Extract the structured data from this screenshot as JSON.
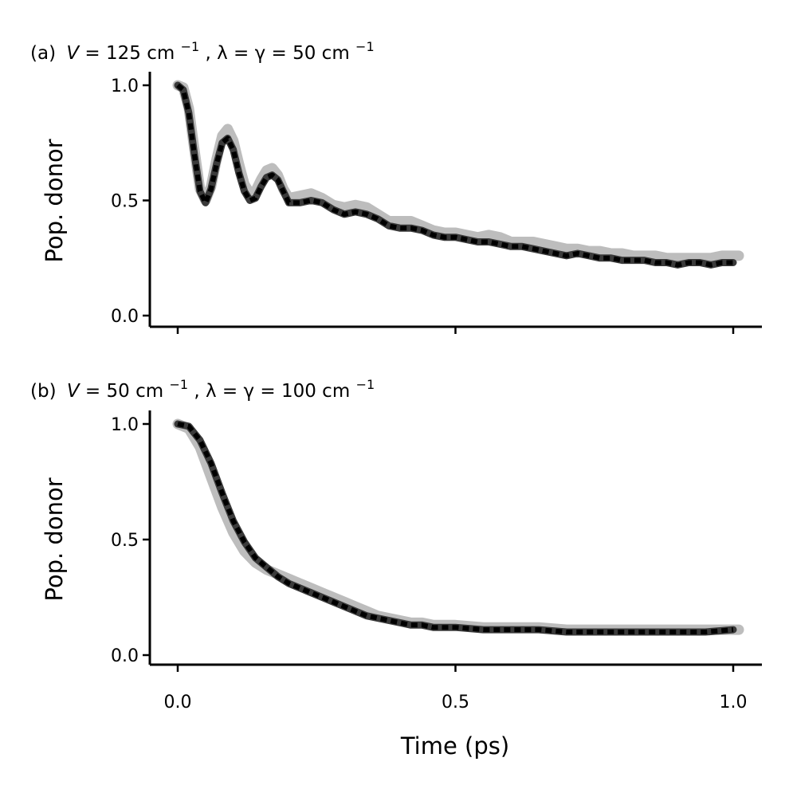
{
  "chart_data": [
    {
      "type": "line",
      "title": "(a) V = 125 cm⁻¹,  λ = γ = 50 cm⁻¹",
      "title_parts": {
        "prefix": "(a)",
        "V": "V",
        "eq1": " = 125 cm",
        "sup1": "−1",
        "mid": ",  λ = γ = 50 cm",
        "sup2": "−1"
      },
      "xlabel": "",
      "ylabel": "Pop. donor",
      "xlim": [
        -0.05,
        1.05
      ],
      "ylim": [
        -0.05,
        1.05
      ],
      "xticks": [
        0.0,
        0.5,
        1.0
      ],
      "xtick_labels_shown": false,
      "yticks": [
        0.0,
        0.5,
        1.0
      ],
      "ytick_labels": [
        "0.0",
        "0.5",
        "1.0"
      ],
      "series": [
        {
          "name": "reference (gray)",
          "color": "#bdbdbd",
          "x": [
            0,
            0.01,
            0.02,
            0.03,
            0.04,
            0.05,
            0.06,
            0.07,
            0.08,
            0.09,
            0.1,
            0.11,
            0.12,
            0.13,
            0.14,
            0.15,
            0.16,
            0.17,
            0.18,
            0.19,
            0.2,
            0.22,
            0.24,
            0.26,
            0.28,
            0.3,
            0.32,
            0.34,
            0.36,
            0.38,
            0.4,
            0.42,
            0.44,
            0.46,
            0.48,
            0.5,
            0.52,
            0.54,
            0.56,
            0.58,
            0.6,
            0.62,
            0.64,
            0.66,
            0.68,
            0.7,
            0.72,
            0.74,
            0.76,
            0.78,
            0.8,
            0.82,
            0.84,
            0.86,
            0.88,
            0.9,
            0.92,
            0.94,
            0.96,
            0.98,
            1.0,
            1.01
          ],
          "y": [
            1.0,
            0.99,
            0.9,
            0.72,
            0.55,
            0.5,
            0.56,
            0.68,
            0.78,
            0.81,
            0.76,
            0.66,
            0.57,
            0.53,
            0.54,
            0.59,
            0.63,
            0.64,
            0.61,
            0.55,
            0.51,
            0.52,
            0.53,
            0.51,
            0.48,
            0.47,
            0.48,
            0.47,
            0.44,
            0.41,
            0.41,
            0.41,
            0.39,
            0.37,
            0.36,
            0.36,
            0.35,
            0.34,
            0.35,
            0.34,
            0.32,
            0.32,
            0.32,
            0.31,
            0.3,
            0.29,
            0.29,
            0.28,
            0.28,
            0.27,
            0.27,
            0.26,
            0.26,
            0.26,
            0.25,
            0.25,
            0.25,
            0.25,
            0.25,
            0.26,
            0.26,
            0.26
          ]
        },
        {
          "name": "result (black)",
          "color": "#111111",
          "x": [
            0,
            0.01,
            0.02,
            0.03,
            0.04,
            0.05,
            0.06,
            0.07,
            0.08,
            0.09,
            0.1,
            0.11,
            0.12,
            0.13,
            0.14,
            0.15,
            0.16,
            0.17,
            0.18,
            0.19,
            0.2,
            0.22,
            0.24,
            0.26,
            0.28,
            0.3,
            0.32,
            0.34,
            0.36,
            0.38,
            0.4,
            0.42,
            0.44,
            0.46,
            0.48,
            0.5,
            0.52,
            0.54,
            0.56,
            0.58,
            0.6,
            0.62,
            0.64,
            0.66,
            0.68,
            0.7,
            0.72,
            0.74,
            0.76,
            0.78,
            0.8,
            0.82,
            0.84,
            0.86,
            0.88,
            0.9,
            0.92,
            0.94,
            0.96,
            0.98,
            1.0
          ],
          "y": [
            1.0,
            0.98,
            0.88,
            0.7,
            0.54,
            0.49,
            0.55,
            0.66,
            0.75,
            0.77,
            0.72,
            0.62,
            0.54,
            0.5,
            0.51,
            0.56,
            0.6,
            0.61,
            0.59,
            0.54,
            0.49,
            0.49,
            0.5,
            0.49,
            0.46,
            0.44,
            0.45,
            0.44,
            0.42,
            0.39,
            0.38,
            0.38,
            0.37,
            0.35,
            0.34,
            0.34,
            0.33,
            0.32,
            0.32,
            0.31,
            0.3,
            0.3,
            0.29,
            0.28,
            0.27,
            0.26,
            0.27,
            0.26,
            0.25,
            0.25,
            0.24,
            0.24,
            0.24,
            0.23,
            0.23,
            0.22,
            0.23,
            0.23,
            0.22,
            0.23,
            0.23
          ]
        }
      ]
    },
    {
      "type": "line",
      "title": "(b) V = 50 cm⁻¹,  λ = γ = 100 cm⁻¹",
      "title_parts": {
        "prefix": "(b)",
        "V": "V",
        "eq1": " = 50 cm",
        "sup1": "−1",
        "mid": ",  λ = γ = 100 cm",
        "sup2": "−1"
      },
      "xlabel": "Time (ps)",
      "ylabel": "Pop. donor",
      "xlim": [
        -0.05,
        1.05
      ],
      "ylim": [
        -0.05,
        1.05
      ],
      "xticks": [
        0.0,
        0.5,
        1.0
      ],
      "xtick_labels": [
        "0.0",
        "0.5",
        "1.0"
      ],
      "yticks": [
        0.0,
        0.5,
        1.0
      ],
      "ytick_labels": [
        "0.0",
        "0.5",
        "1.0"
      ],
      "series": [
        {
          "name": "reference (gray)",
          "color": "#bdbdbd",
          "x": [
            0,
            0.02,
            0.04,
            0.06,
            0.08,
            0.1,
            0.12,
            0.14,
            0.16,
            0.18,
            0.2,
            0.22,
            0.24,
            0.26,
            0.28,
            0.3,
            0.32,
            0.34,
            0.36,
            0.38,
            0.4,
            0.42,
            0.44,
            0.46,
            0.48,
            0.5,
            0.55,
            0.6,
            0.65,
            0.7,
            0.75,
            0.8,
            0.85,
            0.9,
            0.95,
            1.0,
            1.01
          ],
          "y": [
            1.0,
            0.98,
            0.9,
            0.77,
            0.64,
            0.53,
            0.45,
            0.4,
            0.37,
            0.35,
            0.33,
            0.31,
            0.29,
            0.27,
            0.25,
            0.23,
            0.21,
            0.19,
            0.17,
            0.16,
            0.15,
            0.14,
            0.14,
            0.13,
            0.13,
            0.13,
            0.12,
            0.12,
            0.12,
            0.11,
            0.11,
            0.11,
            0.11,
            0.11,
            0.11,
            0.11,
            0.11
          ]
        },
        {
          "name": "result (black)",
          "color": "#111111",
          "x": [
            0,
            0.02,
            0.04,
            0.06,
            0.08,
            0.1,
            0.12,
            0.14,
            0.16,
            0.18,
            0.2,
            0.22,
            0.24,
            0.26,
            0.28,
            0.3,
            0.32,
            0.34,
            0.36,
            0.38,
            0.4,
            0.42,
            0.44,
            0.46,
            0.48,
            0.5,
            0.55,
            0.6,
            0.65,
            0.7,
            0.75,
            0.8,
            0.85,
            0.9,
            0.95,
            1.0
          ],
          "y": [
            1.0,
            0.99,
            0.93,
            0.83,
            0.7,
            0.58,
            0.49,
            0.42,
            0.38,
            0.34,
            0.31,
            0.29,
            0.27,
            0.25,
            0.23,
            0.21,
            0.19,
            0.17,
            0.16,
            0.15,
            0.14,
            0.13,
            0.13,
            0.12,
            0.12,
            0.12,
            0.11,
            0.11,
            0.11,
            0.1,
            0.1,
            0.1,
            0.1,
            0.1,
            0.1,
            0.11
          ]
        }
      ]
    }
  ]
}
